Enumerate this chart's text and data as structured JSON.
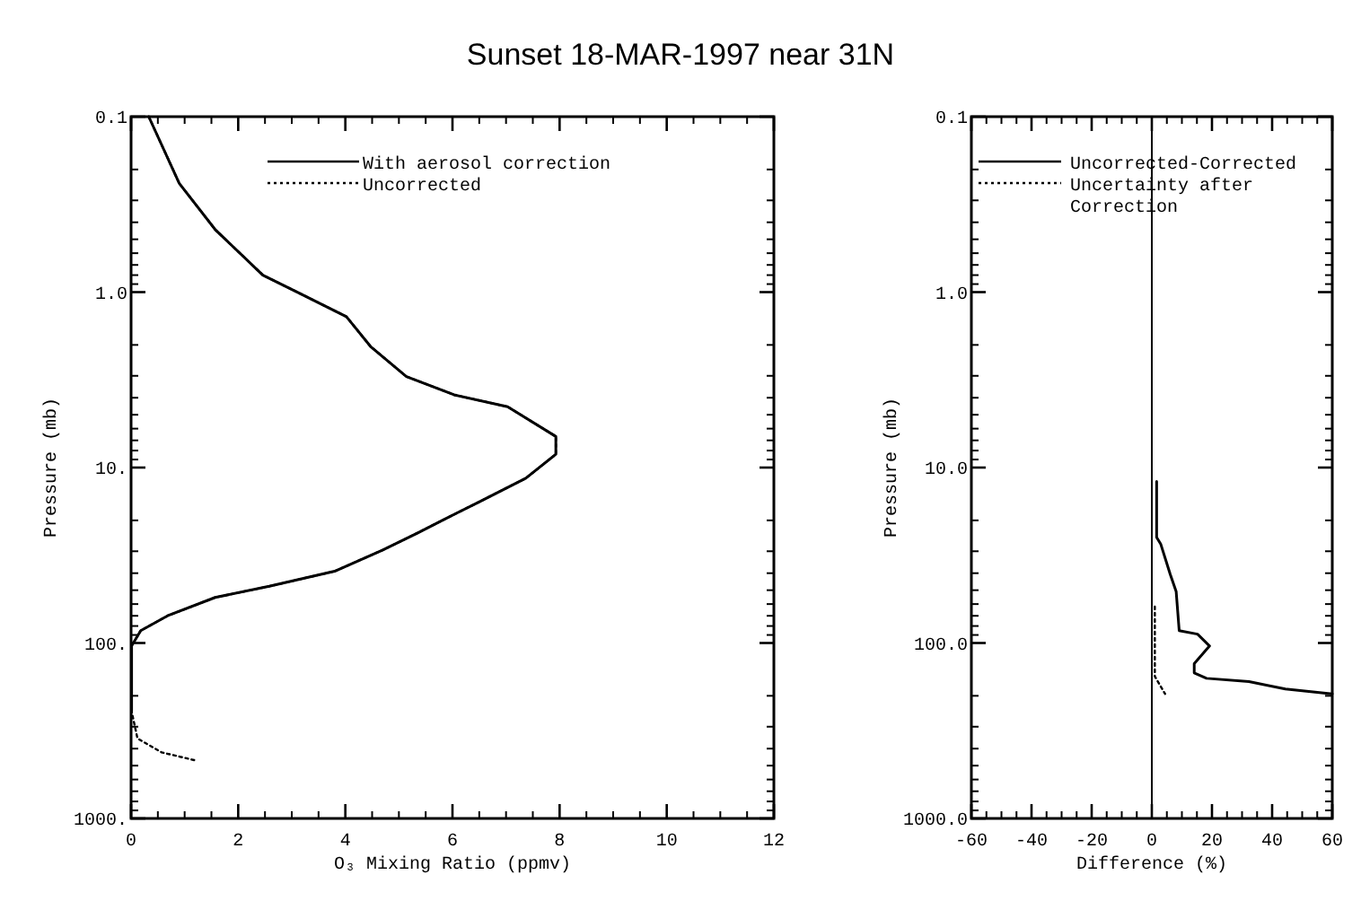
{
  "chart_data": [
    {
      "type": "line",
      "title": "Sunset 18-MAR-1997 near 31N",
      "xlabel": "O₃ Mixing Ratio (ppmv)",
      "ylabel": "Pressure (mb)",
      "log": "y",
      "legend": "top right",
      "grid": false,
      "marker": "none",
      "xlim": [
        0,
        12
      ],
      "xticks": [
        0,
        2,
        4,
        6,
        8,
        10,
        12
      ],
      "ylim": [
        1000,
        0.1
      ],
      "yticks": [
        {
          "value": 0.1,
          "label": "0.1"
        },
        {
          "value": 1,
          "label": "1.0"
        },
        {
          "value": 10,
          "label": "10."
        },
        {
          "value": 100,
          "label": "100."
        },
        {
          "value": 1000,
          "label": "1000."
        }
      ],
      "series": [
        {
          "name": "With aerosol correction",
          "color": "#000000",
          "line_style": "solid",
          "x": [
            0.33,
            0.9,
            1.57,
            2.46,
            3.13,
            4.02,
            4.47,
            5.14,
            6.03,
            7.03,
            7.93,
            7.93,
            7.37,
            6.48,
            5.81,
            5.36,
            4.69,
            3.8,
            2.58,
            1.57,
            0.68,
            0.18,
            0.01,
            0.01
          ],
          "values": [
            0.1,
            0.24,
            0.44,
            0.8,
            1.01,
            1.38,
            2.04,
            3.03,
            3.85,
            4.5,
            6.65,
            8.4,
            11.5,
            15.8,
            20,
            23.5,
            29.6,
            39,
            47.5,
            55,
            70,
            85,
            104,
            245
          ]
        },
        {
          "name": "Uncorrected",
          "color": "#000000",
          "line_style": "dotted",
          "x": [
            0.33,
            0.9,
            1.57,
            2.46,
            3.13,
            4.02,
            4.47,
            5.14,
            6.03,
            7.03,
            7.93,
            7.93,
            7.37,
            6.48,
            5.81,
            5.36,
            4.69,
            3.8,
            2.58,
            1.57,
            0.68,
            0.18,
            0.01,
            0.01,
            0.12,
            0.57,
            1.24
          ],
          "values": [
            0.1,
            0.24,
            0.44,
            0.8,
            1.01,
            1.38,
            2.04,
            3.03,
            3.85,
            4.5,
            6.65,
            8.4,
            11.5,
            15.8,
            20,
            23.5,
            29.6,
            39,
            47.5,
            55,
            70,
            85,
            104,
            245,
            350,
            420,
            470
          ]
        }
      ]
    },
    {
      "type": "line",
      "xlabel": "Difference (%)",
      "ylabel": "Pressure (mb)",
      "log": "y",
      "legend": "top right",
      "grid": false,
      "marker": "none",
      "xlim": [
        -60,
        60
      ],
      "xticks": [
        -60,
        -40,
        -20,
        0,
        20,
        40,
        60
      ],
      "ylim": [
        1000,
        0.1
      ],
      "yticks": [
        {
          "value": 0.1,
          "label": "0.1"
        },
        {
          "value": 1,
          "label": "1.0"
        },
        {
          "value": 10,
          "label": "10.0"
        },
        {
          "value": 100,
          "label": "100.0"
        },
        {
          "value": 1000,
          "label": "1000.0"
        }
      ],
      "ref_lines": [
        {
          "axis": "x",
          "value": 0,
          "color": "#000000"
        }
      ],
      "series": [
        {
          "name": "Uncorrected-Corrected",
          "color": "#000000",
          "line_style": "solid",
          "x": [
            1.6,
            1.6,
            3,
            6.1,
            8.1,
            9.1,
            15.2,
            19.2,
            14.1,
            14.1,
            18.2,
            32.3,
            44.4,
            60
          ],
          "values": [
            12,
            25,
            27.4,
            40.5,
            51,
            85,
            89,
            104,
            131,
            148,
            159,
            166,
            183,
            195
          ]
        },
        {
          "name": "Uncertainty after Correction",
          "color": "#000000",
          "line_style": "dotted",
          "x": [
            1,
            1,
            4.4
          ],
          "values": [
            62,
            155,
            195
          ]
        }
      ]
    }
  ]
}
